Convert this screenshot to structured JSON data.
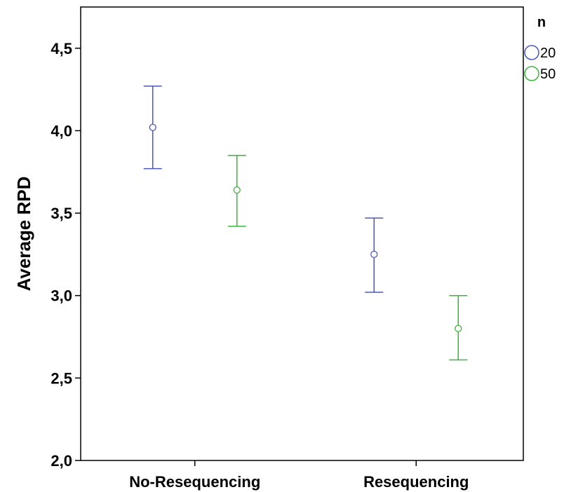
{
  "chart_data": {
    "type": "scatter",
    "subtype": "error-bar",
    "title": "",
    "xlabel": "",
    "ylabel": "Average RPD",
    "categories": [
      "No-Resequencing",
      "Resequencing"
    ],
    "ylim": [
      2.0,
      4.75
    ],
    "yticks": [
      {
        "value": 2.0,
        "label": "2,0"
      },
      {
        "value": 2.5,
        "label": "2,5"
      },
      {
        "value": 3.0,
        "label": "3,0"
      },
      {
        "value": 3.5,
        "label": "3,5"
      },
      {
        "value": 4.0,
        "label": "4,0"
      },
      {
        "value": 4.5,
        "label": "4,5"
      }
    ],
    "grid": false,
    "legend": {
      "title": "n",
      "placement": "right-top"
    },
    "series": [
      {
        "name": "20",
        "color": "#4a5ab4",
        "means": [
          4.02,
          3.25
        ],
        "lower": [
          3.77,
          3.02
        ],
        "upper": [
          4.27,
          3.47
        ]
      },
      {
        "name": "50",
        "color": "#3cb43c",
        "means": [
          3.64,
          2.8
        ],
        "lower": [
          3.42,
          2.61
        ],
        "upper": [
          3.85,
          3.0
        ]
      }
    ]
  }
}
